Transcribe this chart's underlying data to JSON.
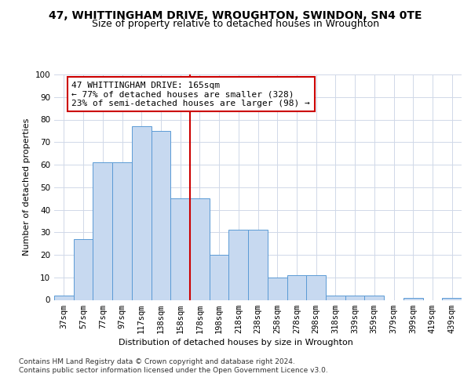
{
  "title": "47, WHITTINGHAM DRIVE, WROUGHTON, SWINDON, SN4 0TE",
  "subtitle": "Size of property relative to detached houses in Wroughton",
  "xlabel": "Distribution of detached houses by size in Wroughton",
  "ylabel": "Number of detached properties",
  "categories": [
    "37sqm",
    "57sqm",
    "77sqm",
    "97sqm",
    "117sqm",
    "138sqm",
    "158sqm",
    "178sqm",
    "198sqm",
    "218sqm",
    "238sqm",
    "258sqm",
    "278sqm",
    "298sqm",
    "318sqm",
    "339sqm",
    "359sqm",
    "379sqm",
    "399sqm",
    "419sqm",
    "439sqm"
  ],
  "values": [
    2,
    27,
    61,
    61,
    77,
    75,
    45,
    45,
    20,
    31,
    31,
    10,
    11,
    11,
    2,
    2,
    2,
    0,
    1,
    0,
    1
  ],
  "bar_color": "#c7d9f0",
  "bar_edge_color": "#5b9bd5",
  "vline_x": 6.5,
  "vline_color": "#cc0000",
  "annotation_text": "47 WHITTINGHAM DRIVE: 165sqm\n← 77% of detached houses are smaller (328)\n23% of semi-detached houses are larger (98) →",
  "annotation_box_color": "#ffffff",
  "annotation_box_edge_color": "#cc0000",
  "ylim": [
    0,
    100
  ],
  "yticks": [
    0,
    10,
    20,
    30,
    40,
    50,
    60,
    70,
    80,
    90,
    100
  ],
  "footer": "Contains HM Land Registry data © Crown copyright and database right 2024.\nContains public sector information licensed under the Open Government Licence v3.0.",
  "bg_color": "#ffffff",
  "grid_color": "#d0d8e8",
  "title_fontsize": 10,
  "subtitle_fontsize": 9,
  "annotation_fontsize": 8,
  "axis_fontsize": 7.5,
  "ylabel_fontsize": 8,
  "footer_fontsize": 6.5
}
